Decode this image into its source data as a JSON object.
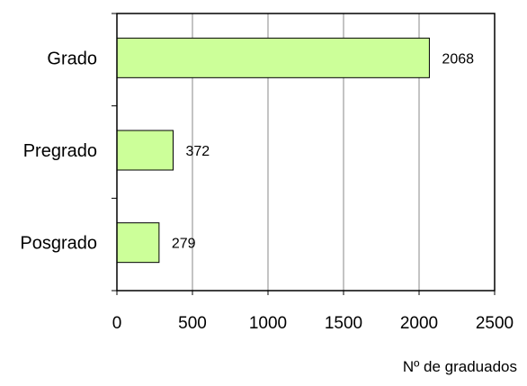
{
  "chart_data": {
    "type": "bar",
    "orientation": "horizontal",
    "categories": [
      "Grado",
      "Pregrado",
      "Posgrado"
    ],
    "values": [
      2068,
      372,
      279
    ],
    "title": "",
    "xlabel": "Nº de graduados",
    "ylabel": "",
    "xlim": [
      0,
      2500
    ],
    "x_ticks": [
      "0",
      "500",
      "1000",
      "1500",
      "2000",
      "2500"
    ],
    "grid": "vertical",
    "legend": "none",
    "bar_color": "#ccff99",
    "bar_edge_color": "#000000",
    "grid_color": "#888888",
    "data_labels": [
      "2068",
      "372",
      "279"
    ]
  }
}
